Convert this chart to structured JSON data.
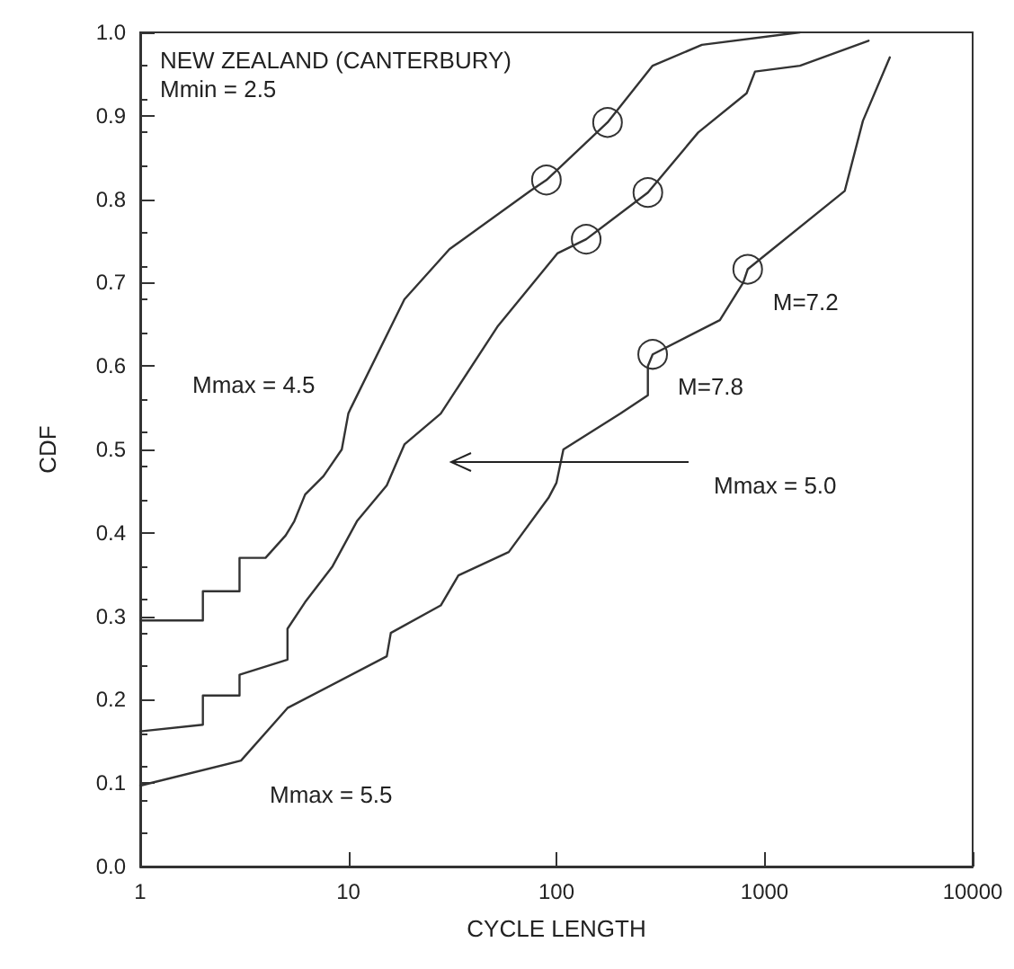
{
  "chart_data": {
    "type": "line",
    "title": "NEW ZEALAND (CANTERBURY)",
    "subtitle": "Mmin = 2.5",
    "xlabel": "CYCLE LENGTH",
    "ylabel": "CDF",
    "log": "x",
    "grid": false,
    "marker": "none",
    "line_style": "solid",
    "xlim": [
      1,
      10000
    ],
    "xticks": [
      1,
      10,
      100,
      1000,
      10000
    ],
    "ylim": [
      0,
      1
    ],
    "yticks": [
      {
        "value": 0,
        "label": "0.0"
      },
      0.1,
      0.2,
      0.3,
      0.4,
      0.5,
      0.6,
      0.7,
      0.8,
      0.9,
      {
        "value": 1,
        "label": "1.0"
      }
    ],
    "series": [
      {
        "color": "#333333",
        "x": [
          1,
          2,
          2,
          3,
          3,
          4,
          5,
          5.5,
          6.2,
          7.6,
          9.3,
          10,
          10.3,
          18.6,
          30.6,
          75,
          89.5,
          176,
          290,
          500,
          1480
        ],
        "values": [
          0.295,
          0.295,
          0.33,
          0.33,
          0.37,
          0.37,
          0.397,
          0.414,
          0.446,
          0.468,
          0.5,
          0.543,
          0.55,
          0.68,
          0.74,
          0.81,
          0.823,
          0.892,
          0.96,
          0.985,
          1.0
        ]
      },
      {
        "color": "#333333",
        "x": [
          1,
          2,
          2,
          3,
          3,
          5.1,
          5.1,
          6.2,
          8.4,
          11,
          15.3,
          18.6,
          27.8,
          52,
          101,
          139,
          275,
          480,
          820,
          900,
          1480,
          3160
        ],
        "values": [
          0.162,
          0.17,
          0.205,
          0.205,
          0.23,
          0.248,
          0.285,
          0.317,
          0.36,
          0.414,
          0.457,
          0.506,
          0.543,
          0.647,
          0.735,
          0.752,
          0.808,
          0.88,
          0.927,
          0.953,
          0.96,
          0.99
        ]
      },
      {
        "color": "#333333",
        "x": [
          1,
          3.05,
          5.1,
          15.3,
          16,
          27.8,
          33.8,
          59,
          91.6,
          100,
          108,
          203,
          275,
          275,
          290,
          610,
          790,
          830,
          2430,
          2970,
          4000
        ],
        "values": [
          0.097,
          0.127,
          0.19,
          0.252,
          0.28,
          0.313,
          0.349,
          0.377,
          0.442,
          0.46,
          0.5,
          0.543,
          0.565,
          0.6,
          0.614,
          0.655,
          0.7,
          0.716,
          0.81,
          0.894,
          0.97
        ]
      },
      {
        "type": "scatter",
        "marker": "circle",
        "color": "#000000",
        "x": [
          89.5,
          176,
          139,
          275,
          290,
          830
        ],
        "values": [
          0.823,
          0.892,
          0.752,
          0.808,
          0.614,
          0.716
        ]
      }
    ],
    "annotations": [
      "Mmax = 4.5",
      "Mmax = 5.0",
      "Mmax = 5.5",
      {
        "text": "M=7.2",
        "x": 830,
        "y": 0.716
      },
      {
        "text": "M=7.8",
        "x": 290,
        "y": 0.614
      }
    ]
  }
}
